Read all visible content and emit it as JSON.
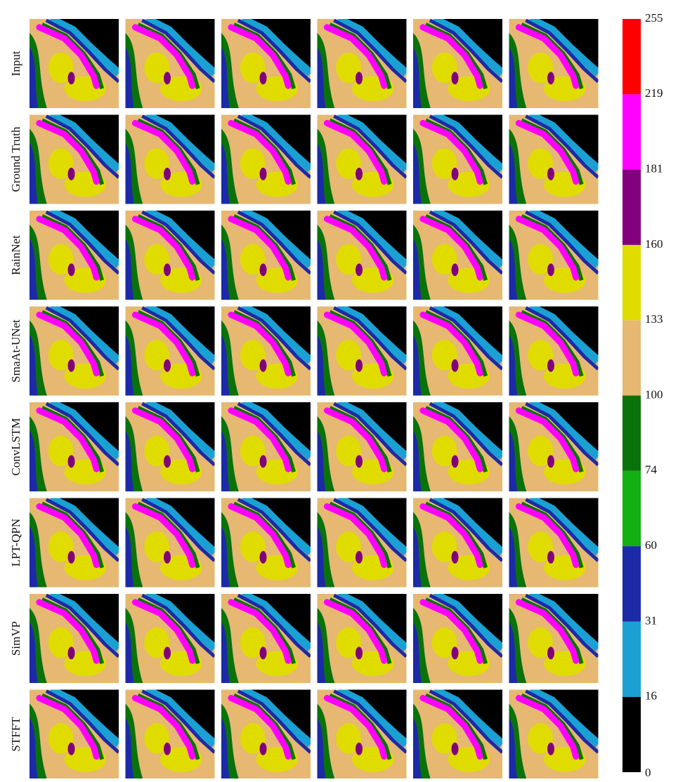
{
  "row_labels": [
    "Input",
    "Ground Truth",
    "RainNet",
    "SmaAt-UNet",
    "ConvLSTM",
    "LPT-QPN",
    "SimVP",
    "STFFT"
  ],
  "colorbar": {
    "ticks": [
      0,
      16,
      31,
      60,
      74,
      100,
      133,
      160,
      181,
      219,
      255
    ],
    "colors": [
      "#000000",
      "#1aa0d2",
      "#1c2aa8",
      "#12b012",
      "#0a720a",
      "#e6b872",
      "#e0dc00",
      "#82007e",
      "#ff00ff",
      "#ff0000"
    ]
  }
}
